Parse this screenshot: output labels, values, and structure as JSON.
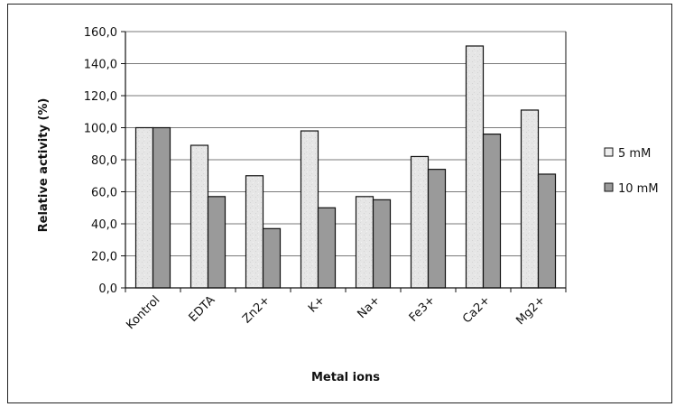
{
  "chart_data": {
    "type": "bar",
    "categories": [
      "Kontrol",
      "EDTA",
      "Zn2+",
      "K+",
      "Na+",
      "Fe3+",
      "Ca2+",
      "Mg2+"
    ],
    "series": [
      {
        "name": "5 mM",
        "values": [
          100,
          89,
          70,
          98,
          57,
          82,
          151,
          111
        ],
        "color": "#e4e4e4"
      },
      {
        "name": "10 mM",
        "values": [
          100,
          57,
          37,
          50,
          55,
          74,
          96,
          71
        ],
        "color": "#9a9a9a"
      }
    ],
    "title": "",
    "xlabel": "Metal ions",
    "ylabel": "Relative activity (%)",
    "ylim": [
      0,
      160
    ],
    "yticks": [
      "0,0",
      "20,0",
      "40,0",
      "60,0",
      "80,0",
      "100,0",
      "120,0",
      "140,0",
      "160,0"
    ],
    "grid": true,
    "legend_position": "right"
  }
}
